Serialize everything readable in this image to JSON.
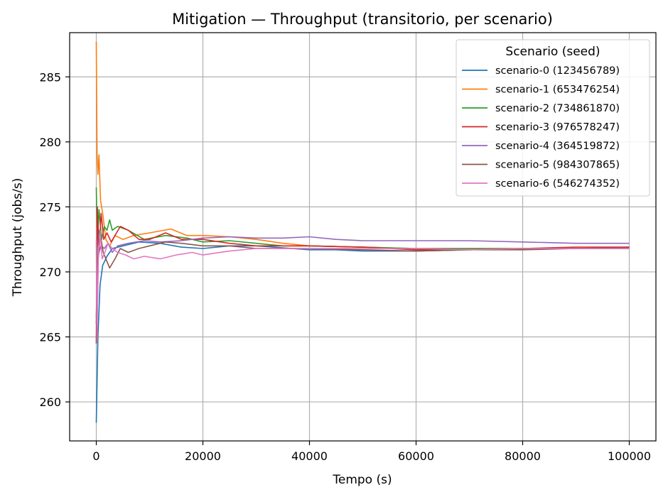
{
  "chart_data": {
    "type": "line",
    "title": "Mitigation — Throughput (transitorio, per scenario)",
    "xlabel": "Tempo (s)",
    "ylabel": "Throughput (jobs/s)",
    "xlim": [
      -5000,
      105000
    ],
    "ylim": [
      257,
      288.4
    ],
    "xticks": [
      0,
      20000,
      40000,
      60000,
      80000,
      100000
    ],
    "yticks": [
      260,
      265,
      270,
      275,
      280,
      285
    ],
    "grid": true,
    "legend": {
      "title": "Scenario (seed)",
      "position": "top-right"
    },
    "series": [
      {
        "name": "scenario-0 (123456789)",
        "color": "#1f77b4",
        "x": [
          0,
          300,
          700,
          1200,
          2000,
          3000,
          5000,
          8000,
          12000,
          16000,
          20000,
          25000,
          30000,
          40000,
          45000,
          50000,
          55000,
          60000,
          70000,
          80000,
          90000,
          100000
        ],
        "y": [
          258.4,
          265.0,
          269.0,
          270.5,
          271.2,
          271.8,
          272.0,
          272.3,
          272.2,
          271.9,
          271.8,
          272.0,
          272.0,
          271.7,
          271.7,
          271.6,
          271.6,
          271.6,
          271.7,
          271.8,
          271.8,
          271.9
        ]
      },
      {
        "name": "scenario-1 (653476254)",
        "color": "#ff7f0e",
        "x": [
          0,
          150,
          300,
          500,
          800,
          1200,
          1800,
          2500,
          3500,
          5000,
          7000,
          10000,
          14000,
          17000,
          20000,
          25000,
          30000,
          35000,
          40000,
          50000,
          60000,
          70000,
          80000,
          90000,
          100000
        ],
        "y": [
          287.7,
          279.0,
          277.5,
          279.0,
          275.5,
          274.5,
          272.5,
          272.0,
          272.8,
          272.5,
          272.8,
          273.0,
          273.3,
          272.8,
          272.8,
          272.7,
          272.5,
          272.2,
          272.0,
          271.9,
          271.8,
          271.8,
          271.8,
          271.8,
          271.8
        ]
      },
      {
        "name": "scenario-2 (734861870)",
        "color": "#2ca02c",
        "x": [
          0,
          200,
          500,
          1000,
          1500,
          2000,
          2500,
          3000,
          4000,
          6000,
          9000,
          13000,
          17000,
          20000,
          25000,
          30000,
          35000,
          40000,
          50000,
          60000,
          70000,
          80000,
          90000,
          100000
        ],
        "y": [
          276.5,
          272.0,
          274.8,
          272.5,
          273.5,
          273.2,
          274.0,
          273.2,
          273.5,
          273.2,
          272.5,
          272.8,
          272.6,
          272.3,
          272.4,
          272.2,
          272.0,
          272.0,
          271.9,
          271.8,
          271.8,
          271.8,
          271.8,
          271.8
        ]
      },
      {
        "name": "scenario-3 (976578247)",
        "color": "#d62728",
        "x": [
          0,
          200,
          500,
          900,
          1400,
          2000,
          2800,
          3500,
          4500,
          6000,
          8000,
          10000,
          13000,
          16000,
          20000,
          25000,
          30000,
          40000,
          50000,
          60000,
          70000,
          80000,
          90000,
          100000
        ],
        "y": [
          264.5,
          275.0,
          271.5,
          274.5,
          272.5,
          273.0,
          272.3,
          272.8,
          273.5,
          273.2,
          272.5,
          272.5,
          273.0,
          272.5,
          272.5,
          272.2,
          272.0,
          272.0,
          271.9,
          271.7,
          271.7,
          271.8,
          271.9,
          271.9
        ]
      },
      {
        "name": "scenario-4 (364519872)",
        "color": "#9467bd",
        "x": [
          0,
          200,
          500,
          900,
          1500,
          2200,
          3000,
          4000,
          6000,
          9000,
          12000,
          16000,
          20000,
          25000,
          30000,
          35000,
          40000,
          45000,
          50000,
          60000,
          70000,
          80000,
          90000,
          100000
        ],
        "y": [
          266.5,
          270.5,
          271.5,
          272.0,
          271.8,
          272.2,
          271.5,
          272.0,
          272.2,
          272.4,
          272.3,
          272.4,
          272.6,
          272.7,
          272.6,
          272.6,
          272.7,
          272.5,
          272.4,
          272.4,
          272.4,
          272.3,
          272.2,
          272.2
        ]
      },
      {
        "name": "scenario-5 (984307865)",
        "color": "#8c564b",
        "x": [
          0,
          200,
          500,
          900,
          1300,
          1800,
          2500,
          3500,
          4500,
          6000,
          8000,
          10000,
          13000,
          16000,
          20000,
          25000,
          30000,
          40000,
          50000,
          60000,
          70000,
          80000,
          90000,
          100000
        ],
        "y": [
          266.0,
          272.0,
          273.2,
          272.5,
          271.5,
          271.0,
          270.3,
          271.0,
          271.8,
          271.5,
          271.8,
          272.0,
          272.3,
          272.2,
          272.0,
          272.0,
          271.8,
          271.8,
          271.7,
          271.6,
          271.7,
          271.7,
          271.8,
          271.8
        ]
      },
      {
        "name": "scenario-6 (546274352)",
        "color": "#e377c2",
        "x": [
          0,
          150,
          400,
          700,
          1100,
          1600,
          2200,
          3000,
          4000,
          5500,
          7000,
          9000,
          12000,
          15000,
          18000,
          20000,
          25000,
          30000,
          40000,
          50000,
          60000,
          70000,
          80000,
          90000,
          100000
        ],
        "y": [
          272.5,
          265.0,
          271.5,
          273.2,
          271.0,
          271.5,
          272.2,
          271.8,
          271.5,
          271.3,
          271.0,
          271.2,
          271.0,
          271.3,
          271.5,
          271.3,
          271.6,
          271.8,
          271.8,
          271.8,
          271.8,
          271.7,
          271.8,
          271.8,
          271.8
        ]
      }
    ]
  }
}
